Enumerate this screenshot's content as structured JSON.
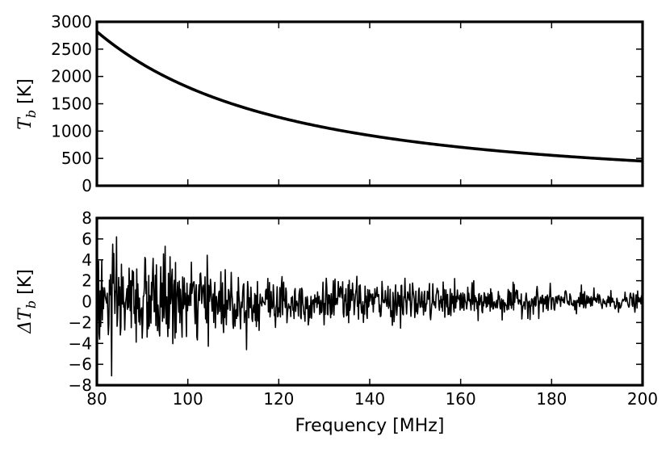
{
  "chart_data": [
    {
      "type": "line",
      "panel": "top",
      "ylabel_symbol": "T",
      "ylabel_sub": "b",
      "ylabel_unit": "[K]",
      "xlim": [
        80,
        200
      ],
      "ylim": [
        0,
        3000
      ],
      "yticks": [
        "0",
        "500",
        "1000",
        "1500",
        "2000",
        "2500",
        "3000"
      ],
      "grid": false,
      "model": {
        "form": "power-law",
        "amplitude_at_80MHz": 2820,
        "spectral_index": -2.0
      },
      "series": [
        {
          "color": "#000000",
          "x": [
            80,
            85,
            90,
            95,
            100,
            105,
            110,
            115,
            120,
            125,
            130,
            135,
            140,
            145,
            150,
            155,
            160,
            165,
            170,
            175,
            180,
            185,
            190,
            195,
            200
          ],
          "y": [
            2820,
            2498,
            2228,
            2000,
            1805,
            1637,
            1492,
            1365,
            1253,
            1155,
            1068,
            990,
            921,
            858,
            802,
            751,
            705,
            663,
            625,
            589,
            557,
            527,
            500,
            475,
            451
          ]
        }
      ]
    },
    {
      "type": "line",
      "panel": "bottom",
      "ylabel_symbol": "ΔT",
      "ylabel_sub": "b",
      "ylabel_unit": "[K]",
      "xlabel": "Frequency [MHz]",
      "xlim": [
        80,
        200
      ],
      "ylim": [
        -8,
        8
      ],
      "xticks": [
        "80",
        "100",
        "120",
        "140",
        "160",
        "180",
        "200"
      ],
      "yticks": [
        "−8",
        "−6",
        "−4",
        "−2",
        "0",
        "2",
        "4",
        "6",
        "8"
      ],
      "grid": false,
      "noise_std_envelope": {
        "at_80MHz": 2.4,
        "at_120MHz": 1.2,
        "at_200MHz": 0.4
      },
      "extremes": [
        {
          "x": 83.2,
          "y": -7.1
        },
        {
          "x": 84.3,
          "y": 6.2
        },
        {
          "x": 95.0,
          "y": 5.3
        }
      ],
      "series": [
        {
          "color": "#000000",
          "points": 1000
        }
      ]
    }
  ]
}
